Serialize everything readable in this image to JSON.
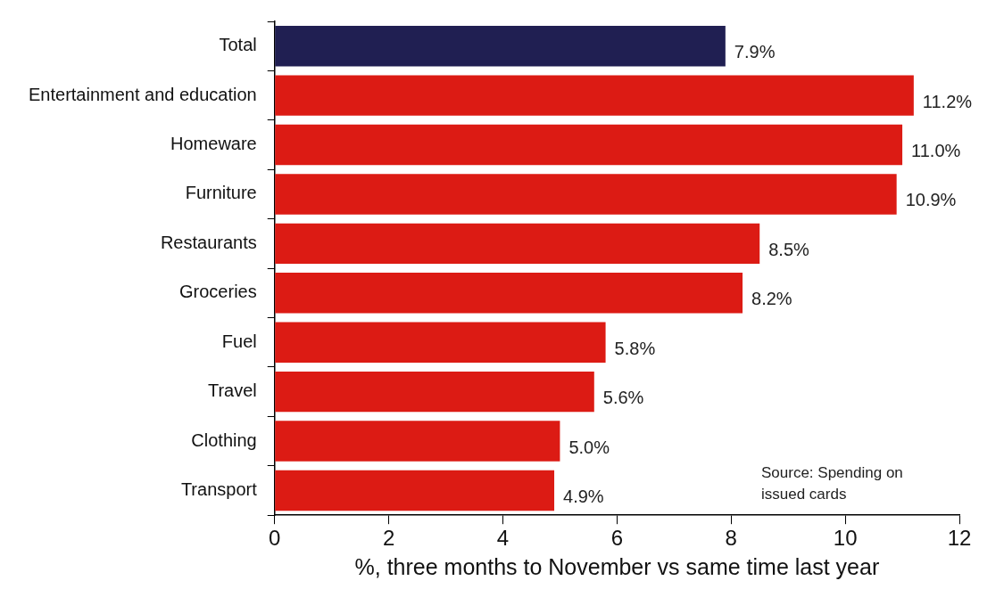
{
  "chart_data": {
    "type": "bar",
    "orientation": "horizontal",
    "xlabel": "%, three months to November vs same time last year",
    "categories": [
      "Total",
      "Entertainment and education",
      "Homeware",
      "Furniture",
      "Restaurants",
      "Groceries",
      "Fuel",
      "Travel",
      "Clothing",
      "Transport"
    ],
    "values": [
      7.9,
      11.2,
      11.0,
      10.9,
      8.5,
      8.2,
      5.8,
      5.6,
      5.0,
      4.9
    ],
    "colors": [
      "#201f52",
      "#dc1b14",
      "#dc1b14",
      "#dc1b14",
      "#dc1b14",
      "#dc1b14",
      "#dc1b14",
      "#dc1b14",
      "#dc1b14",
      "#dc1b14"
    ],
    "value_labels": [
      "7.9%",
      "11.2%",
      "11.0%",
      "10.9%",
      "8.5%",
      "8.2%",
      "5.8%",
      "5.6%",
      "5.0%",
      "4.9%"
    ],
    "xlim": [
      0,
      12
    ],
    "xticks": [
      0,
      2,
      4,
      6,
      8,
      10,
      12
    ],
    "grid": false,
    "legend": false,
    "annotations": [
      "Source: Spending on issued cards"
    ]
  }
}
